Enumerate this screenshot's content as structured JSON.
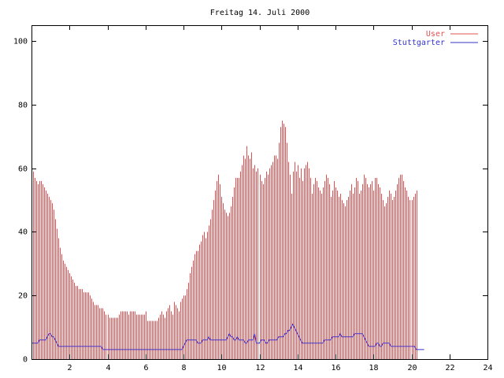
{
  "chart_data": {
    "type": "bar",
    "title": "Freitag 14. Juli 2000",
    "xlabel": "",
    "ylabel": "",
    "xlim": [
      0,
      24
    ],
    "ylim": [
      0,
      105
    ],
    "x_ticks": [
      "2",
      "4",
      "6",
      "8",
      "10",
      "12",
      "14",
      "16",
      "18",
      "20",
      "22",
      "24"
    ],
    "y_ticks": [
      "0",
      "20",
      "40",
      "60",
      "80",
      "100"
    ],
    "grid": false,
    "legend_position": "top-right",
    "colors": {
      "user": "#e05050",
      "stuttgarter": "#3333cc",
      "axis": "#000000"
    },
    "bar_interval_minutes": 5,
    "series": [
      {
        "name": "User",
        "style": "impulses",
        "values": [
          61,
          59,
          57,
          56,
          55,
          56,
          56,
          55,
          54,
          53,
          52,
          51,
          50,
          49,
          47,
          44,
          41,
          38,
          35,
          33,
          31,
          30,
          29,
          28,
          27,
          26,
          25,
          24,
          23,
          23,
          22,
          22,
          22,
          21,
          21,
          21,
          21,
          20,
          19,
          18,
          17,
          17,
          17,
          16,
          16,
          16,
          15,
          14,
          14,
          13,
          13,
          13,
          13,
          13,
          13,
          14,
          15,
          15,
          15,
          15,
          15,
          14,
          15,
          15,
          15,
          15,
          14,
          14,
          14,
          14,
          14,
          14,
          15,
          12,
          12,
          12,
          12,
          12,
          12,
          12,
          13,
          14,
          15,
          14,
          13,
          15,
          16,
          17,
          15,
          14,
          18,
          17,
          16,
          15,
          18,
          19,
          20,
          20,
          22,
          24,
          27,
          29,
          31,
          33,
          34,
          34,
          36,
          37,
          39,
          40,
          38,
          40,
          42,
          44,
          47,
          50,
          53,
          56,
          58,
          55,
          51,
          49,
          47,
          46,
          45,
          46,
          48,
          51,
          54,
          57,
          57,
          57,
          59,
          61,
          64,
          63,
          67,
          64,
          63,
          65,
          60,
          61,
          59,
          60,
          58,
          56,
          55,
          57,
          59,
          58,
          60,
          61,
          62,
          64,
          64,
          63,
          68,
          73,
          75,
          74,
          73,
          68,
          62,
          58,
          52,
          59,
          62,
          59,
          61,
          57,
          60,
          56,
          60,
          61,
          62,
          60,
          57,
          52,
          55,
          57,
          56,
          54,
          53,
          52,
          54,
          56,
          58,
          57,
          55,
          51,
          53,
          56,
          54,
          53,
          51,
          52,
          50,
          49,
          48,
          50,
          51,
          53,
          55,
          52,
          54,
          57,
          56,
          52,
          53,
          55,
          58,
          57,
          55,
          54,
          55,
          56,
          53,
          57,
          57,
          55,
          54,
          52,
          50,
          48,
          49,
          51,
          53,
          52,
          50,
          51,
          53,
          55,
          57,
          58,
          58,
          56,
          54,
          53,
          51,
          50,
          50,
          51,
          52,
          53
        ]
      },
      {
        "name": "Stuttgarter",
        "style": "line",
        "values": [
          5,
          5,
          5,
          5,
          5,
          6,
          6,
          6,
          6,
          6,
          7,
          8,
          8,
          7,
          7,
          6,
          5,
          4,
          4,
          4,
          4,
          4,
          4,
          4,
          4,
          4,
          4,
          4,
          4,
          4,
          4,
          4,
          4,
          4,
          4,
          4,
          4,
          4,
          4,
          4,
          4,
          4,
          4,
          4,
          4,
          3,
          3,
          3,
          3,
          3,
          3,
          3,
          3,
          3,
          3,
          3,
          3,
          3,
          3,
          3,
          3,
          3,
          3,
          3,
          3,
          3,
          3,
          3,
          3,
          3,
          3,
          3,
          3,
          3,
          3,
          3,
          3,
          3,
          3,
          3,
          3,
          3,
          3,
          3,
          3,
          3,
          3,
          3,
          3,
          3,
          3,
          3,
          3,
          3,
          3,
          3,
          4,
          5,
          6,
          6,
          6,
          6,
          6,
          6,
          6,
          5,
          5,
          5,
          6,
          6,
          6,
          6,
          7,
          6,
          6,
          6,
          6,
          6,
          6,
          6,
          6,
          6,
          6,
          6,
          7,
          8,
          7,
          7,
          6,
          6,
          7,
          6,
          6,
          6,
          6,
          5,
          5,
          6,
          6,
          6,
          6,
          8,
          5,
          5,
          5,
          6,
          6,
          6,
          5,
          5,
          6,
          6,
          6,
          6,
          6,
          6,
          7,
          7,
          7,
          7,
          8,
          8,
          9,
          9,
          10,
          11,
          10,
          9,
          8,
          7,
          6,
          5,
          5,
          5,
          5,
          5,
          5,
          5,
          5,
          5,
          5,
          5,
          5,
          5,
          5,
          6,
          6,
          6,
          6,
          6,
          7,
          7,
          7,
          7,
          7,
          8,
          7,
          7,
          7,
          7,
          7,
          7,
          7,
          7,
          8,
          8,
          8,
          8,
          8,
          8,
          7,
          6,
          5,
          4,
          4,
          4,
          4,
          4,
          5,
          5,
          4,
          4,
          5,
          5,
          5,
          5,
          5,
          4,
          4,
          4,
          4,
          4,
          4,
          4,
          4,
          4,
          4,
          4,
          4,
          4,
          4,
          4,
          4,
          3,
          3,
          3,
          3,
          3,
          3
        ]
      }
    ]
  }
}
